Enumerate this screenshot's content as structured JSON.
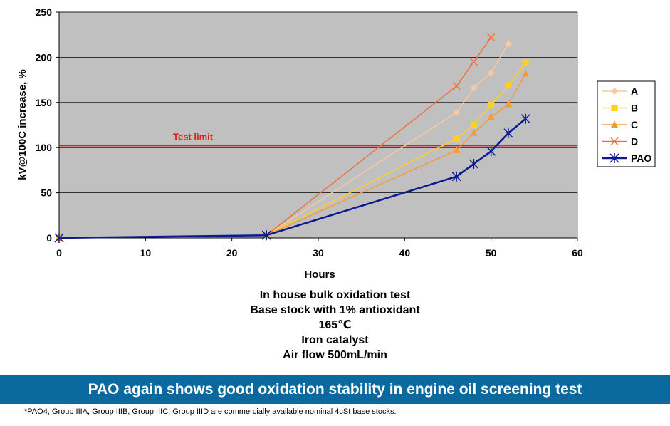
{
  "chart_data": {
    "type": "line",
    "ylabel": "kV@100C increase, %",
    "xlabel": "Hours",
    "xlim": [
      0,
      60
    ],
    "ylim": [
      0,
      250
    ],
    "x_ticks": [
      "0",
      "10",
      "20",
      "30",
      "40",
      "50",
      "60"
    ],
    "y_ticks": [
      "0",
      "50",
      "100",
      "150",
      "200",
      "250"
    ],
    "grid": "horizontal",
    "legend_position": "right",
    "annotation": {
      "label": "Test limit",
      "value": 102,
      "color": "#e0201c"
    },
    "series": [
      {
        "name": "A",
        "color": "#f9c8a0",
        "marker": "diamond",
        "x": [
          0,
          24,
          46,
          48,
          50,
          52
        ],
        "y": [
          0,
          3,
          139,
          166,
          183,
          215
        ]
      },
      {
        "name": "B",
        "color": "#ffd020",
        "marker": "square",
        "x": [
          0,
          24,
          46,
          48,
          50,
          52,
          54
        ],
        "y": [
          0,
          3,
          110,
          125,
          147,
          169,
          194
        ]
      },
      {
        "name": "C",
        "color": "#f59a3c",
        "marker": "triangle",
        "x": [
          0,
          24,
          46,
          48,
          50,
          52,
          54
        ],
        "y": [
          0,
          3,
          97,
          116,
          134,
          148,
          182
        ]
      },
      {
        "name": "D",
        "color": "#f07038",
        "marker": "x",
        "x": [
          0,
          24,
          46,
          48,
          50
        ],
        "y": [
          0,
          3,
          168,
          195,
          222
        ]
      },
      {
        "name": "PAO",
        "color": "#0a1a90",
        "marker": "asterisk",
        "x": [
          0,
          24,
          46,
          48,
          50,
          52,
          54
        ],
        "y": [
          0,
          3,
          68,
          82,
          96,
          116,
          132
        ]
      }
    ]
  },
  "caption": [
    "In house bulk oxidation test",
    "Base stock with 1% antioxidant",
    "165℃",
    "Iron catalyst",
    "Air flow 500mL/min"
  ],
  "banner": "PAO again shows good oxidation stability in engine oil screening test",
  "footnote": "*PAO4, Group IIIA, Group IIIB, Group IIIC, Group IIID are commercially available nominal 4cSt base stocks."
}
